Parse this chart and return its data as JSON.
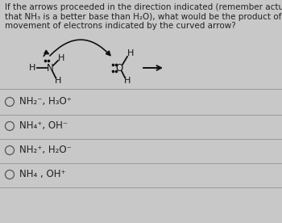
{
  "title_lines": [
    "If the arrows proceeded in the direction indicated (remember actually though",
    "that NH₃ is a better base than H₂O), what would be the product of the",
    "movement of electrons indicated by the curved arrow?"
  ],
  "options": [
    [
      "NH₂",
      "⁻",
      ", H₃O",
      "⁺"
    ],
    [
      "NH₄",
      "⁺",
      ", OH",
      "⁻"
    ],
    [
      "NH₂",
      "⁺",
      ", H₂O",
      "⁻"
    ],
    [
      "NH₄",
      " ",
      ", OH",
      "⁺"
    ]
  ],
  "bg_color": "#c8c8c8",
  "panel_color": "#e8e8e8",
  "text_color": "#222222",
  "title_fontsize": 7.5,
  "option_fontsize": 8.5,
  "divider_color": "#999999",
  "mol_color": "#111111"
}
